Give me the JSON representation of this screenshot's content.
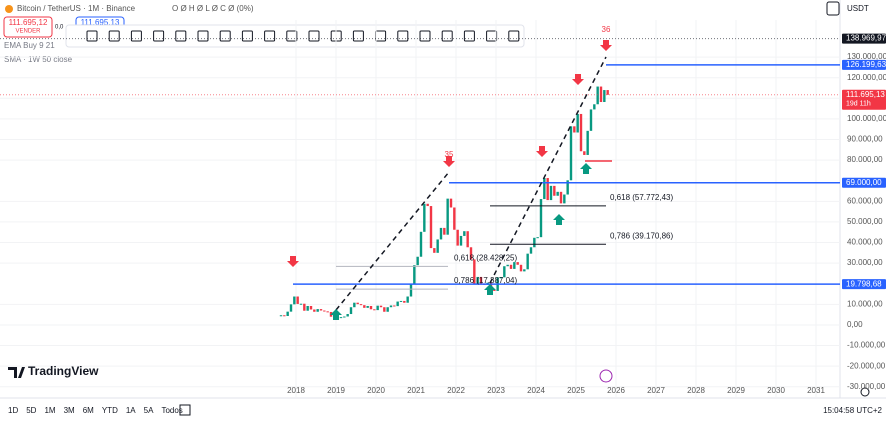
{
  "header": {
    "symbol": "Bitcoin / TetherUS · 1M · Binance",
    "ohlc": "O Ø H Ø L Ø C Ø (0%)",
    "currency": "USDT",
    "sell_price": "111.695,12",
    "sell_label": "VENDER",
    "spread": "0,0",
    "buy_price": "111.695,13",
    "indicators": [
      "EMA Buy 9 21",
      "SMA · 1W 50 close"
    ]
  },
  "price_axis": {
    "ylim": [
      -34000,
      148000
    ],
    "ticks": [
      {
        "value": 130000,
        "label": "130.000,00"
      },
      {
        "value": 120000,
        "label": "120.000,00"
      },
      {
        "value": 110000,
        "label": "110.000,00"
      },
      {
        "value": 100000,
        "label": "100.000,00"
      },
      {
        "value": 90000,
        "label": "90.000,00"
      },
      {
        "value": 80000,
        "label": "80.000,00"
      },
      {
        "value": 60000,
        "label": "60.000,00"
      },
      {
        "value": 50000,
        "label": "50.000,00"
      },
      {
        "value": 40000,
        "label": "40.000,00"
      },
      {
        "value": 30000,
        "label": "30.000,00"
      },
      {
        "value": 10000,
        "label": "10.000,00"
      },
      {
        "value": 0,
        "label": "0,00"
      },
      {
        "value": -10000,
        "label": "-10.000,00"
      },
      {
        "value": -20000,
        "label": "-20.000,00"
      },
      {
        "value": -30000,
        "label": "-30.000,00"
      }
    ]
  },
  "time_axis": {
    "ticks": [
      2018,
      2019,
      2020,
      2021,
      2022,
      2023,
      2024,
      2025,
      2026,
      2027,
      2028,
      2029,
      2030,
      2031
    ]
  },
  "levels": [
    {
      "value": 138969.97,
      "label": "138.969,97",
      "color": "#131722"
    },
    {
      "value": 126199.63,
      "label": "126.199,63",
      "color": "#2962ff"
    },
    {
      "value": 111695.13,
      "label": "111.695,13",
      "color": "#f23645",
      "countdown": "19d 11h"
    },
    {
      "value": 69000,
      "label": "69.000,00",
      "color": "#2962ff"
    },
    {
      "value": 19798.68,
      "label": "19.798,68",
      "color": "#2962ff"
    }
  ],
  "fibs": [
    {
      "value": 28428.25,
      "label": "0,618 (28.428,25)"
    },
    {
      "value": 17387.04,
      "label": "0,786 (17.387,04)"
    },
    {
      "value": 57772.43,
      "label": "0,618 (57.772,43)"
    },
    {
      "value": 39170.86,
      "label": "0,786 (39.170,86)"
    }
  ],
  "cycle_labels": [
    "35",
    "36"
  ],
  "candles": {
    "up_color": "#089981",
    "down_color": "#f23645",
    "closes": [
      4700,
      4340,
      6450,
      10000,
      13800,
      10200,
      10300,
      6900,
      9200,
      7500,
      6400,
      7700,
      7000,
      6600,
      6300,
      4000,
      3700,
      3400,
      3800,
      4100,
      5300,
      8600,
      10800,
      10100,
      9600,
      8300,
      9200,
      7600,
      7200,
      9350,
      8600,
      6400,
      8600,
      9450,
      9140,
      11350,
      11650,
      10780,
      13800,
      19700,
      29000,
      33100,
      45200,
      58800,
      57700,
      37300,
      35000,
      41500,
      47100,
      43800,
      61300,
      57000,
      46200,
      38500,
      43200,
      45500,
      37700,
      31800,
      19900,
      23300,
      20000,
      19400,
      20500,
      17200,
      16500,
      23100,
      23100,
      28500,
      29200,
      27200,
      30500,
      29200,
      26000,
      27000,
      34600,
      37700,
      42300,
      42600,
      61100,
      71300,
      60600,
      67500,
      62700,
      64600,
      59000,
      63300,
      70200,
      96400,
      93400,
      102400,
      84300,
      82500,
      94200,
      104600,
      107100,
      115700,
      108200,
      114000,
      111695
    ]
  },
  "logo": "TradingView",
  "footer": {
    "ranges": [
      "1D",
      "5D",
      "1M",
      "3M",
      "6M",
      "YTD",
      "1A",
      "5A",
      "Todos"
    ],
    "clock": "15:04:58 UTC+2"
  }
}
